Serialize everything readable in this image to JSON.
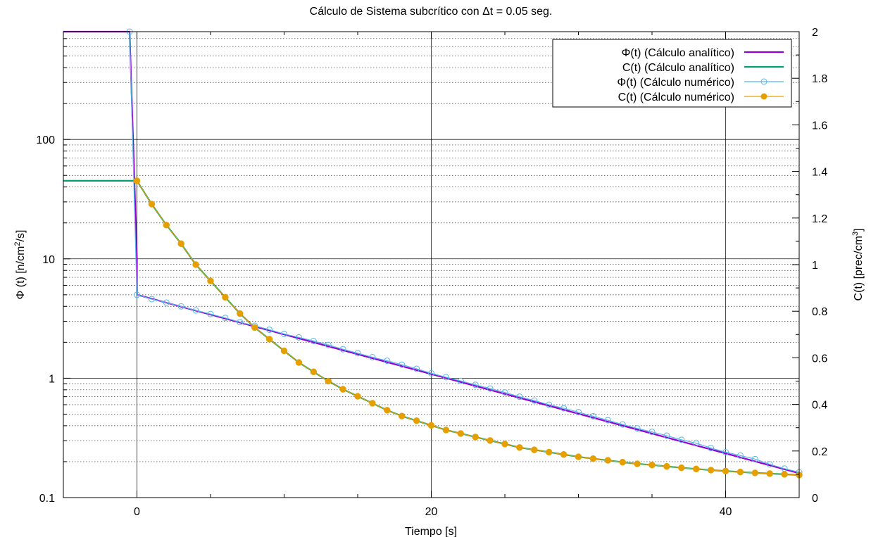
{
  "chart_data": {
    "type": "line",
    "title": "Cálculo de Sistema subcrítico con Δt = 0.05 seg.",
    "xlabel": "Tiempo [s]",
    "ylabel": "Φ (t) [n/cm²/s]",
    "ylabel_left": {
      "main": "Φ (t) [n/cm",
      "sup": "2",
      "tail": "/s]"
    },
    "y2label": {
      "main": "C(t) [prec/cm",
      "sup": "3",
      "tail": "]"
    },
    "xlim": [
      -5,
      45
    ],
    "ylim": [
      0.1,
      800
    ],
    "yscale": "log",
    "y2lim": [
      0,
      2
    ],
    "xticks": [
      "0",
      "20",
      "40"
    ],
    "yticks": [
      "0.1",
      "1",
      "10",
      "100"
    ],
    "y2ticks": [
      "0",
      "0.2",
      "0.4",
      "0.6",
      "0.8",
      "1",
      "1.2",
      "1.4",
      "1.6",
      "1.8",
      "2"
    ],
    "grid": true,
    "legend_position": "top-right",
    "series": [
      {
        "name": "Φ(t) (Cálculo analítico)",
        "axis": "left",
        "color": "#9400d3",
        "style": "line",
        "x": [
          -5,
          -0.5,
          0,
          0,
          45
        ],
        "y": [
          800,
          800,
          10,
          5,
          0.16
        ]
      },
      {
        "name": "C(t) (Cálculo analítico)",
        "axis": "right",
        "color": "#009e73",
        "style": "line",
        "x": [
          -5,
          -0.5,
          0,
          1,
          2,
          3,
          4,
          5,
          6,
          7,
          8,
          9,
          10,
          11,
          12,
          13,
          14,
          15,
          16,
          17,
          18,
          19,
          20,
          21,
          22,
          23,
          24,
          25,
          26,
          27,
          28,
          29,
          30,
          31,
          32,
          33,
          34,
          35,
          36,
          37,
          38,
          39,
          40,
          41,
          42,
          43,
          44,
          45
        ],
        "y": [
          1.36,
          1.36,
          1.36,
          1.26,
          1.17,
          1.09,
          1.0,
          0.93,
          0.86,
          0.79,
          0.73,
          0.68,
          0.63,
          0.58,
          0.54,
          0.5,
          0.465,
          0.435,
          0.405,
          0.375,
          0.35,
          0.33,
          0.31,
          0.29,
          0.275,
          0.26,
          0.245,
          0.23,
          0.215,
          0.205,
          0.195,
          0.185,
          0.175,
          0.167,
          0.16,
          0.152,
          0.145,
          0.14,
          0.134,
          0.128,
          0.123,
          0.118,
          0.114,
          0.11,
          0.106,
          0.103,
          0.1,
          0.097
        ]
      },
      {
        "name": "Φ(t) (Cálculo numérico)",
        "axis": "left",
        "color": "#56b4e9",
        "style": "linespoints-open",
        "x": [
          -0.5,
          0,
          1,
          2,
          3,
          4,
          5,
          6,
          7,
          8,
          9,
          10,
          11,
          12,
          13,
          14,
          15,
          16,
          17,
          18,
          19,
          20,
          21,
          22,
          23,
          24,
          25,
          26,
          27,
          28,
          29,
          30,
          31,
          32,
          33,
          34,
          35,
          36,
          37,
          38,
          39,
          40,
          41,
          42,
          43,
          44,
          45
        ],
        "y": [
          800,
          5.0,
          4.6,
          4.3,
          4.0,
          3.7,
          3.45,
          3.2,
          2.95,
          2.75,
          2.55,
          2.35,
          2.2,
          2.05,
          1.9,
          1.75,
          1.62,
          1.5,
          1.4,
          1.3,
          1.2,
          1.1,
          1.02,
          0.95,
          0.88,
          0.82,
          0.76,
          0.7,
          0.65,
          0.6,
          0.56,
          0.52,
          0.48,
          0.445,
          0.41,
          0.38,
          0.355,
          0.33,
          0.305,
          0.285,
          0.26,
          0.24,
          0.225,
          0.21,
          0.19,
          0.175,
          0.163
        ]
      },
      {
        "name": "C(t) (Cálculo numérico)",
        "axis": "right",
        "color": "#e69f00",
        "style": "linespoints-filled",
        "x": [
          0,
          1,
          2,
          3,
          4,
          5,
          6,
          7,
          8,
          9,
          10,
          11,
          12,
          13,
          14,
          15,
          16,
          17,
          18,
          19,
          20,
          21,
          22,
          23,
          24,
          25,
          26,
          27,
          28,
          29,
          30,
          31,
          32,
          33,
          34,
          35,
          36,
          37,
          38,
          39,
          40,
          41,
          42,
          43,
          44,
          45
        ],
        "y": [
          1.36,
          1.26,
          1.17,
          1.09,
          1.0,
          0.93,
          0.86,
          0.79,
          0.73,
          0.68,
          0.63,
          0.58,
          0.54,
          0.5,
          0.465,
          0.435,
          0.405,
          0.375,
          0.35,
          0.33,
          0.31,
          0.29,
          0.275,
          0.26,
          0.245,
          0.23,
          0.215,
          0.205,
          0.195,
          0.185,
          0.175,
          0.167,
          0.16,
          0.152,
          0.145,
          0.14,
          0.134,
          0.128,
          0.123,
          0.118,
          0.114,
          0.11,
          0.106,
          0.103,
          0.1,
          0.097
        ]
      }
    ]
  }
}
